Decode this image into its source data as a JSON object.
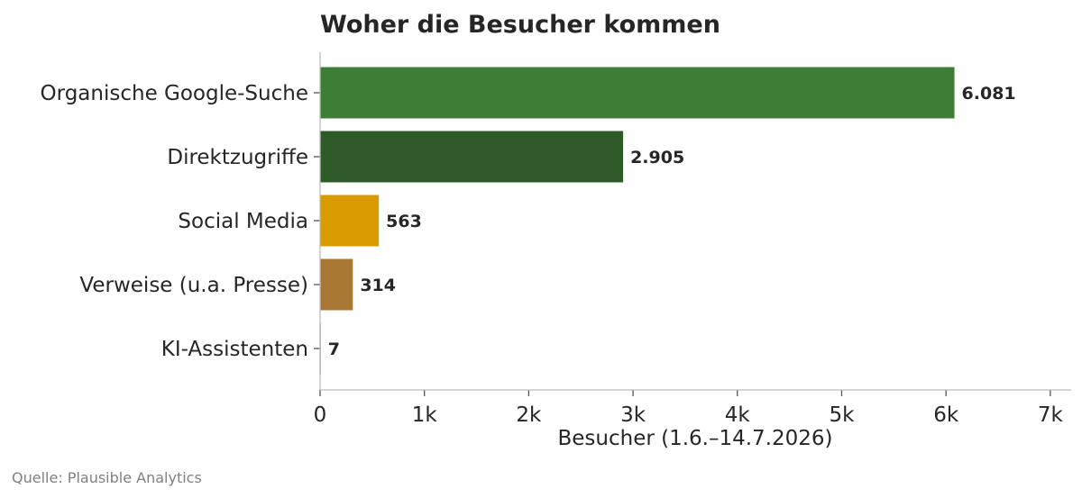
{
  "chart_data": {
    "type": "bar",
    "orientation": "horizontal",
    "title": "Woher die Besucher kommen",
    "categories": [
      "Organische Google-Suche",
      "Direktzugriffe",
      "Social Media",
      "Verweise (u.a. Presse)",
      "KI-Assistenten"
    ],
    "values": [
      6081,
      2905,
      563,
      314,
      7
    ],
    "value_labels": [
      "6.081",
      "2.905",
      "563",
      "314",
      "7"
    ],
    "colors": [
      "#3e7d35",
      "#2d5a26",
      "#d99b00",
      "#a87733",
      "#a87733"
    ],
    "xlabel": "Besucher (1.6.–14.7.2026)",
    "ylabel": "",
    "xlim": [
      0,
      7200
    ],
    "xticks": [
      0,
      1000,
      2000,
      3000,
      4000,
      5000,
      6000,
      7000
    ],
    "xtick_labels": [
      "0",
      "1k",
      "2k",
      "3k",
      "4k",
      "5k",
      "6k",
      "7k"
    ],
    "grid": false,
    "source": "Quelle: Plausible Analytics"
  }
}
